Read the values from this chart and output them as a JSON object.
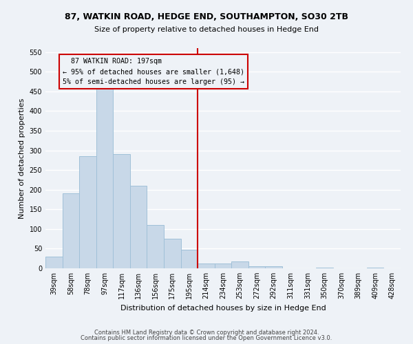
{
  "title1": "87, WATKIN ROAD, HEDGE END, SOUTHAMPTON, SO30 2TB",
  "title2": "Size of property relative to detached houses in Hedge End",
  "xlabel": "Distribution of detached houses by size in Hedge End",
  "ylabel": "Number of detached properties",
  "categories": [
    "39sqm",
    "58sqm",
    "78sqm",
    "97sqm",
    "117sqm",
    "136sqm",
    "156sqm",
    "175sqm",
    "195sqm",
    "214sqm",
    "234sqm",
    "253sqm",
    "272sqm",
    "292sqm",
    "311sqm",
    "331sqm",
    "350sqm",
    "370sqm",
    "389sqm",
    "409sqm",
    "428sqm"
  ],
  "values": [
    30,
    190,
    285,
    460,
    290,
    210,
    110,
    75,
    47,
    12,
    12,
    18,
    6,
    5,
    0,
    0,
    2,
    0,
    0,
    2,
    0
  ],
  "bar_color": "#c8d8e8",
  "bar_edge_color": "#a0c0d8",
  "vline_x_index": 8.5,
  "vline_color": "#cc0000",
  "annotation_text": "  87 WATKIN ROAD: 197sqm  \n← 95% of detached houses are smaller (1,648)\n5% of semi-detached houses are larger (95) →",
  "annotation_box_color": "#cc0000",
  "ylim": [
    0,
    560
  ],
  "yticks": [
    0,
    50,
    100,
    150,
    200,
    250,
    300,
    350,
    400,
    450,
    500,
    550
  ],
  "background_color": "#eef2f7",
  "grid_color": "#ffffff",
  "footer1": "Contains HM Land Registry data © Crown copyright and database right 2024.",
  "footer2": "Contains public sector information licensed under the Open Government Licence v3.0.",
  "title1_fontsize": 9,
  "title2_fontsize": 8,
  "xlabel_fontsize": 8,
  "ylabel_fontsize": 8,
  "tick_fontsize": 7,
  "footer_fontsize": 6
}
